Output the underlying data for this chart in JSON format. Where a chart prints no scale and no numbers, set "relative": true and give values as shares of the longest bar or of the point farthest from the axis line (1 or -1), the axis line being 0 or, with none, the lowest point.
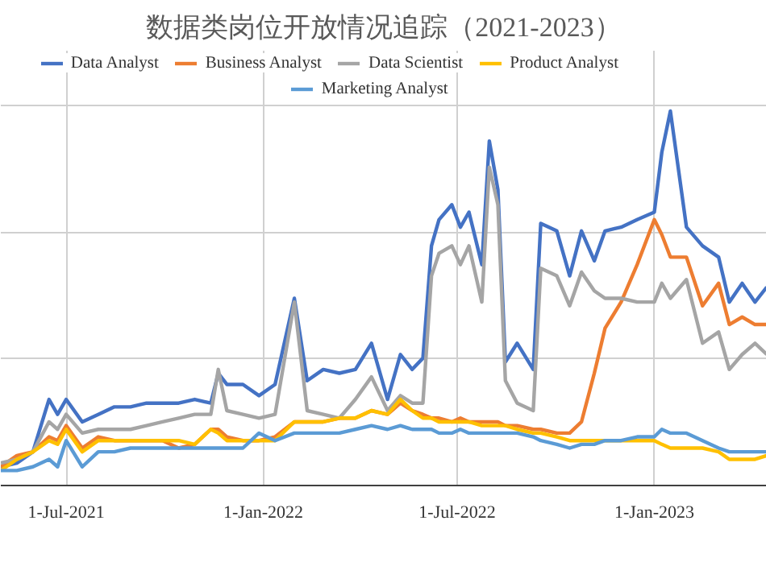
{
  "chart_data": {
    "type": "line",
    "title": "数据类岗位开放情况追踪（2021-2023）",
    "relative": true,
    "grid": true,
    "legend": "top",
    "x": [
      "2021-05-01",
      "2021-05-16",
      "2021-05-31",
      "2021-06-15",
      "2021-06-23",
      "2021-07-01",
      "2021-07-16",
      "2021-07-31",
      "2021-08-15",
      "2021-08-30",
      "2021-09-14",
      "2021-09-29",
      "2021-10-14",
      "2021-10-29",
      "2021-11-13",
      "2021-11-20",
      "2021-11-28",
      "2021-12-13",
      "2021-12-28",
      "2022-01-12",
      "2022-01-30",
      "2022-02-11",
      "2022-02-26",
      "2022-03-13",
      "2022-03-28",
      "2022-04-12",
      "2022-04-27",
      "2022-05-09",
      "2022-05-20",
      "2022-05-30",
      "2022-06-07",
      "2022-06-14",
      "2022-06-26",
      "2022-07-04",
      "2022-07-12",
      "2022-07-24",
      "2022-07-31",
      "2022-08-08",
      "2022-08-15",
      "2022-08-26",
      "2022-09-10",
      "2022-09-17",
      "2022-10-02",
      "2022-10-14",
      "2022-10-25",
      "2022-11-06",
      "2022-11-16",
      "2022-12-01",
      "2022-12-16",
      "2023-01-01",
      "2023-01-08",
      "2023-01-16",
      "2023-01-31",
      "2023-02-15",
      "2023-03-02",
      "2023-03-12",
      "2023-03-24",
      "2023-04-05",
      "2023-04-16"
    ],
    "xlim": [
      "2021-05-01",
      "2023-04-16"
    ],
    "xticks": [
      {
        "value": "2021-07-01",
        "label": "1-Jul-2021"
      },
      {
        "value": "2022-01-01",
        "label": "1-Jan-2022"
      },
      {
        "value": "2022-07-01",
        "label": "1-Jul-2022"
      },
      {
        "value": "2023-01-01",
        "label": "1-Jan-2023"
      }
    ],
    "series": [
      {
        "name": "Data Analyst",
        "color": "#4472c4",
        "values": [
          0.05,
          0.06,
          0.09,
          0.23,
          0.19,
          0.23,
          0.17,
          0.19,
          0.21,
          0.21,
          0.22,
          0.22,
          0.22,
          0.23,
          0.22,
          0.3,
          0.27,
          0.27,
          0.24,
          0.27,
          0.5,
          0.28,
          0.31,
          0.3,
          0.31,
          0.38,
          0.23,
          0.35,
          0.31,
          0.34,
          0.64,
          0.71,
          0.75,
          0.69,
          0.73,
          0.59,
          0.92,
          0.79,
          0.33,
          0.38,
          0.31,
          0.7,
          0.68,
          0.56,
          0.68,
          0.6,
          0.68,
          0.69,
          0.71,
          0.73,
          0.89,
          1,
          0.69,
          0.64,
          0.61,
          0.49,
          0.54,
          0.49,
          0.53
        ]
      },
      {
        "name": "Business Analyst",
        "color": "#ed7d31",
        "values": [
          0.05,
          0.08,
          0.09,
          0.13,
          0.12,
          0.16,
          0.1,
          0.13,
          0.12,
          0.12,
          0.12,
          0.12,
          0.1,
          0.11,
          0.15,
          0.15,
          0.13,
          0.12,
          0.12,
          0.13,
          0.17,
          0.17,
          0.17,
          0.18,
          0.18,
          0.2,
          0.19,
          0.22,
          0.2,
          0.19,
          0.18,
          0.18,
          0.17,
          0.18,
          0.17,
          0.17,
          0.17,
          0.17,
          0.16,
          0.16,
          0.15,
          0.15,
          0.14,
          0.14,
          0.17,
          0.3,
          0.42,
          0.49,
          0.59,
          0.71,
          0.67,
          0.61,
          0.61,
          0.48,
          0.54,
          0.43,
          0.45,
          0.43,
          0.43
        ]
      },
      {
        "name": "Data Scientist",
        "color": "#a5a5a5",
        "values": [
          0.06,
          0.07,
          0.09,
          0.17,
          0.15,
          0.19,
          0.14,
          0.15,
          0.15,
          0.15,
          0.16,
          0.17,
          0.18,
          0.19,
          0.19,
          0.31,
          0.2,
          0.19,
          0.18,
          0.19,
          0.49,
          0.2,
          0.19,
          0.18,
          0.23,
          0.29,
          0.2,
          0.24,
          0.22,
          0.22,
          0.56,
          0.62,
          0.64,
          0.59,
          0.64,
          0.49,
          0.85,
          0.75,
          0.28,
          0.22,
          0.2,
          0.58,
          0.56,
          0.48,
          0.57,
          0.52,
          0.5,
          0.5,
          0.49,
          0.49,
          0.54,
          0.5,
          0.55,
          0.38,
          0.41,
          0.31,
          0.35,
          0.38,
          0.35
        ]
      },
      {
        "name": "Product Analyst",
        "color": "#ffc000",
        "values": [
          0.04,
          0.07,
          0.09,
          0.12,
          0.11,
          0.15,
          0.09,
          0.12,
          0.12,
          0.12,
          0.12,
          0.12,
          0.12,
          0.11,
          0.15,
          0.14,
          0.12,
          0.12,
          0.12,
          0.12,
          0.17,
          0.17,
          0.17,
          0.18,
          0.18,
          0.2,
          0.19,
          0.23,
          0.2,
          0.18,
          0.18,
          0.17,
          0.17,
          0.17,
          0.17,
          0.16,
          0.16,
          0.16,
          0.16,
          0.15,
          0.14,
          0.14,
          0.13,
          0.12,
          0.12,
          0.12,
          0.12,
          0.12,
          0.12,
          0.12,
          0.11,
          0.1,
          0.1,
          0.1,
          0.09,
          0.07,
          0.07,
          0.07,
          0.08
        ]
      },
      {
        "name": "Marketing Analyst",
        "color": "#5b9bd5",
        "values": [
          0.04,
          0.04,
          0.05,
          0.07,
          0.05,
          0.12,
          0.05,
          0.09,
          0.09,
          0.1,
          0.1,
          0.1,
          0.1,
          0.1,
          0.1,
          0.1,
          0.1,
          0.1,
          0.14,
          0.12,
          0.14,
          0.14,
          0.14,
          0.14,
          0.15,
          0.16,
          0.15,
          0.16,
          0.15,
          0.15,
          0.15,
          0.14,
          0.14,
          0.15,
          0.14,
          0.14,
          0.14,
          0.14,
          0.14,
          0.14,
          0.13,
          0.12,
          0.11,
          0.1,
          0.11,
          0.11,
          0.12,
          0.12,
          0.13,
          0.13,
          0.15,
          0.14,
          0.14,
          0.12,
          0.1,
          0.09,
          0.09,
          0.09,
          0.09
        ]
      }
    ]
  }
}
